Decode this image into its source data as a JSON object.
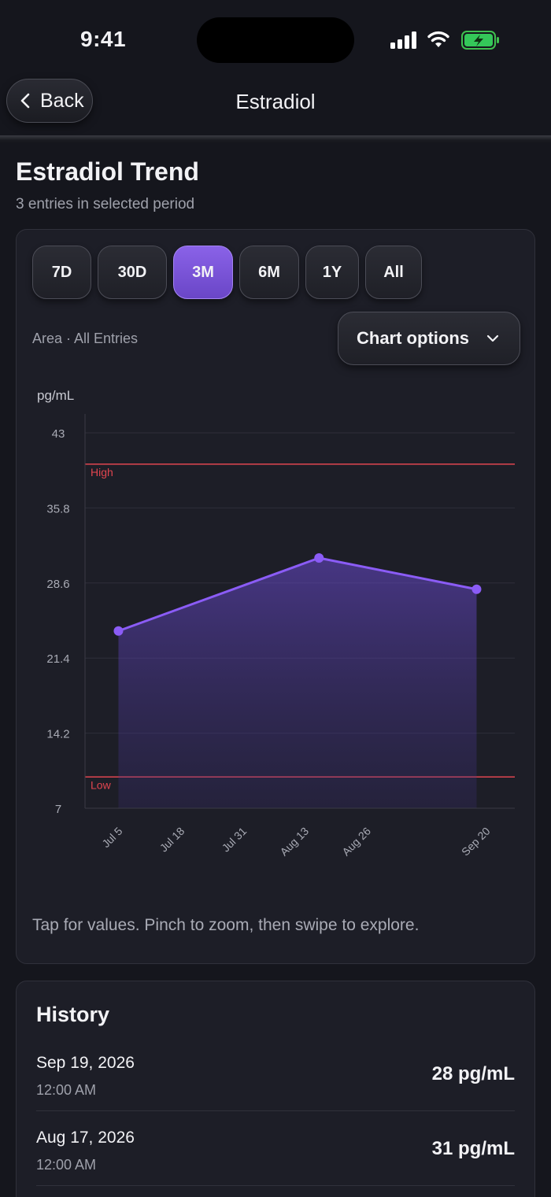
{
  "status_bar": {
    "time": "9:41",
    "icons": [
      "signal-icon",
      "wifi-icon",
      "battery-charging-icon"
    ]
  },
  "nav": {
    "back_label": "Back",
    "title": "Estradiol"
  },
  "page": {
    "title": "Estradiol Trend",
    "subtitle": "3 entries in selected period"
  },
  "range_buttons": [
    {
      "label": "7D",
      "active": false
    },
    {
      "label": "30D",
      "active": false
    },
    {
      "label": "3M",
      "active": true
    },
    {
      "label": "6M",
      "active": false
    },
    {
      "label": "1Y",
      "active": false
    },
    {
      "label": "All",
      "active": false
    }
  ],
  "chart_mode": "Area · All Entries",
  "chart_options_label": "Chart options",
  "chart_hint": "Tap for values. Pinch to zoom, then swipe to explore.",
  "colors": {
    "accent": "#8b5cf6",
    "range_line": "#e0454f",
    "background": "#15161d",
    "card": "#1d1e27"
  },
  "chart_data": {
    "type": "area",
    "ylabel": "pg/mL",
    "ylim": [
      7,
      43
    ],
    "yticks": [
      "43",
      "35.8",
      "28.6",
      "21.4",
      "14.2",
      "7"
    ],
    "xticks": [
      {
        "label": "Jul 5",
        "date": "2026-07-05"
      },
      {
        "label": "Jul 18",
        "date": "2026-07-18"
      },
      {
        "label": "Jul 31",
        "date": "2026-07-31"
      },
      {
        "label": "Aug 13",
        "date": "2026-08-13"
      },
      {
        "label": "Aug 26",
        "date": "2026-08-26"
      },
      {
        "label": "Sep 20",
        "date": "2026-09-20"
      }
    ],
    "xlim": [
      "2026-06-29",
      "2026-09-27"
    ],
    "reference_lines": [
      {
        "label": "High",
        "value": 40
      },
      {
        "label": "Low",
        "value": 10
      }
    ],
    "series": [
      {
        "points": [
          {
            "x": "2026-07-06",
            "y": 24
          },
          {
            "x": "2026-08-17",
            "y": 31
          },
          {
            "x": "2026-09-19",
            "y": 28
          }
        ]
      }
    ],
    "grid": true
  },
  "history": {
    "title": "History",
    "entries": [
      {
        "date": "Sep 19, 2026",
        "time": "12:00 AM",
        "value": "28 pg/mL"
      },
      {
        "date": "Aug 17, 2026",
        "time": "12:00 AM",
        "value": "31 pg/mL"
      }
    ]
  }
}
